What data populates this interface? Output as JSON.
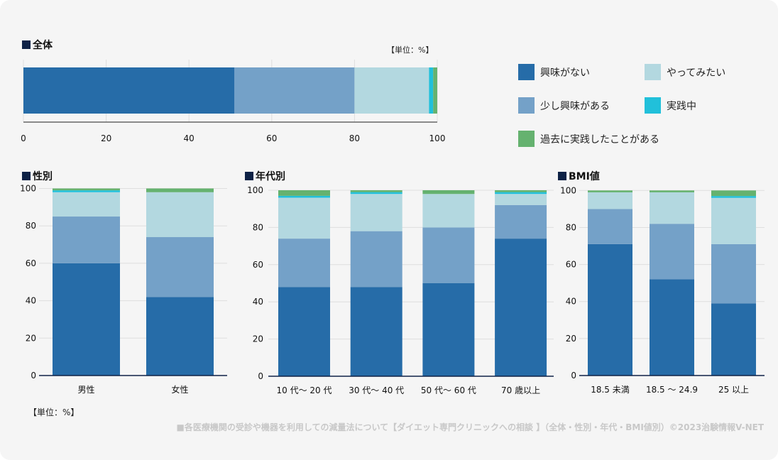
{
  "series_names": [
    "興味がない",
    "少し興味がある",
    "やってみたい",
    "実践中",
    "過去に実践したことがある"
  ],
  "colors": {
    "興味がない": "#266ca8",
    "少し興味がある": "#74a1c8",
    "やってみたい": "#b3d8e0",
    "実践中": "#21c0da",
    "過去に実践したことがある": "#65b26f",
    "title_square": "#0e2246",
    "axis": "#0e2246",
    "grid": "#dedede"
  },
  "overall": {
    "title": "全体",
    "unit": "【単位：%】"
  },
  "gender": {
    "title": "性別"
  },
  "age": {
    "title": "年代別"
  },
  "bmi": {
    "title": "BMI値"
  },
  "legend": {
    "items": [
      {
        "label": "興味がない"
      },
      {
        "label": "やってみたい"
      },
      {
        "label": "少し興味がある"
      },
      {
        "label": "実践中"
      },
      {
        "label": "過去に実践したことがある"
      }
    ]
  },
  "bottom_unit": "【単位：%】",
  "footer": "■各医療機関の受診や機器を利用しての減量法について【ダイエット専門クリニックへの相談 】（全体・性別・年代・BMI値別）©2023治験情報V-NET",
  "chart_data": [
    {
      "id": "overall",
      "type": "bar",
      "orientation": "horizontal",
      "stacked": true,
      "title": "全体",
      "categories": [
        "全体"
      ],
      "series": [
        {
          "name": "興味がない",
          "values": [
            51
          ]
        },
        {
          "name": "少し興味がある",
          "values": [
            29
          ]
        },
        {
          "name": "やってみたい",
          "values": [
            18
          ]
        },
        {
          "name": "実践中",
          "values": [
            1
          ]
        },
        {
          "name": "過去に実践したことがある",
          "values": [
            1
          ]
        }
      ],
      "xlim": [
        0,
        100
      ],
      "ticks": [
        0,
        20,
        40,
        60,
        80,
        100
      ],
      "unit": "%",
      "grid": true,
      "legend": "right"
    },
    {
      "id": "gender",
      "type": "bar",
      "stacked": true,
      "title": "性別",
      "categories": [
        "男性",
        "女性"
      ],
      "series": [
        {
          "name": "興味がない",
          "values": [
            60,
            42
          ]
        },
        {
          "name": "少し興味がある",
          "values": [
            25,
            32
          ]
        },
        {
          "name": "やってみたい",
          "values": [
            13,
            24
          ]
        },
        {
          "name": "実践中",
          "values": [
            1,
            0
          ]
        },
        {
          "name": "過去に実践したことがある",
          "values": [
            1,
            2
          ]
        }
      ],
      "ylim": [
        0,
        100
      ],
      "ticks": [
        0,
        20,
        40,
        60,
        80,
        100
      ],
      "unit": "%",
      "grid": true
    },
    {
      "id": "age",
      "type": "bar",
      "stacked": true,
      "title": "年代別",
      "categories": [
        "10 代～ 20 代",
        "30 代～ 40 代",
        "50 代～ 60 代",
        "70 歳以上"
      ],
      "series": [
        {
          "name": "興味がない",
          "values": [
            48,
            48,
            50,
            74
          ]
        },
        {
          "name": "少し興味がある",
          "values": [
            26,
            30,
            30,
            18
          ]
        },
        {
          "name": "やってみたい",
          "values": [
            22,
            20,
            18,
            6
          ]
        },
        {
          "name": "実践中",
          "values": [
            1,
            1,
            0,
            1
          ]
        },
        {
          "name": "過去に実践したことがある",
          "values": [
            3,
            1,
            2,
            1
          ]
        }
      ],
      "ylim": [
        0,
        100
      ],
      "ticks": [
        0,
        20,
        40,
        60,
        80,
        100
      ],
      "unit": "%",
      "grid": true
    },
    {
      "id": "bmi",
      "type": "bar",
      "stacked": true,
      "title": "BMI値",
      "categories": [
        "18.5 未満",
        "18.5 ～ 24.9",
        "25 以上"
      ],
      "series": [
        {
          "name": "興味がない",
          "values": [
            71,
            52,
            39
          ]
        },
        {
          "name": "少し興味がある",
          "values": [
            19,
            30,
            32
          ]
        },
        {
          "name": "やってみたい",
          "values": [
            9,
            17,
            25
          ]
        },
        {
          "name": "実践中",
          "values": [
            0,
            0,
            1
          ]
        },
        {
          "name": "過去に実践したことがある",
          "values": [
            1,
            1,
            3
          ]
        }
      ],
      "ylim": [
        0,
        100
      ],
      "ticks": [
        0,
        20,
        40,
        60,
        80,
        100
      ],
      "unit": "%",
      "grid": true
    }
  ]
}
